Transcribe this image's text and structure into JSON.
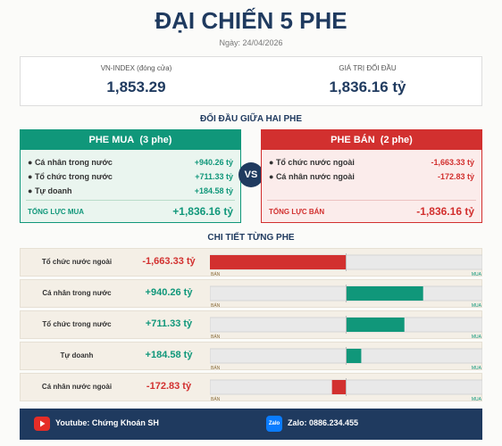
{
  "header": {
    "title": "ĐẠI CHIẾN 5 PHE",
    "date": "Ngày: 24/04/2026"
  },
  "stats": [
    {
      "label": "VN-INDEX (đóng cửa)",
      "value": "1,853.29"
    },
    {
      "label": "GIÁ TRỊ ĐỐI ĐẦU",
      "value": "1,836.16 tỷ"
    }
  ],
  "versus": {
    "title": "ĐỐI ĐẦU GIỮA HAI PHE",
    "vs": "VS",
    "buy": {
      "name": "PHE MUA",
      "count": "(3 phe)",
      "items": [
        {
          "name": "Cá nhân trong nước",
          "value": "+940.26 tỷ"
        },
        {
          "name": "Tổ chức trong nước",
          "value": "+711.33 tỷ"
        },
        {
          "name": "Tự doanh",
          "value": "+184.58 tỷ"
        }
      ],
      "total_label": "TỔNG LỰC MUA",
      "total": "+1,836.16 tỷ"
    },
    "sell": {
      "name": "PHE BÁN",
      "count": "(2 phe)",
      "items": [
        {
          "name": "Tổ chức nước ngoài",
          "value": "-1,663.33 tỷ"
        },
        {
          "name": "Cá nhân nước ngoài",
          "value": "-172.83 tỷ"
        }
      ],
      "total_label": "TỔNG LỰC BÁN",
      "total": "-1,836.16 tỷ"
    }
  },
  "detail": {
    "title": "CHI TIẾT TỪNG PHE",
    "sell_label": "BÁN",
    "buy_label": "MUA",
    "positive_color": "#10977a",
    "negative_color": "#d2302f",
    "rows": [
      {
        "name": "Tổ chức nước ngoài",
        "value": -1663.33,
        "value_label": "-1,663.33 tỷ"
      },
      {
        "name": "Cá nhân trong nước",
        "value": 940.26,
        "value_label": "+940.26 tỷ"
      },
      {
        "name": "Tổ chức trong nước",
        "value": 711.33,
        "value_label": "+711.33 tỷ"
      },
      {
        "name": "Tự doanh",
        "value": 184.58,
        "value_label": "+184.58 tỷ"
      },
      {
        "name": "Cá nhân nước ngoài",
        "value": -172.83,
        "value_label": "-172.83 tỷ"
      }
    ]
  },
  "footer": {
    "youtube": "Youtube: Chứng Khoán SH",
    "zalo_icon": "Zalo",
    "zalo": "Zalo: 0886.234.455"
  }
}
